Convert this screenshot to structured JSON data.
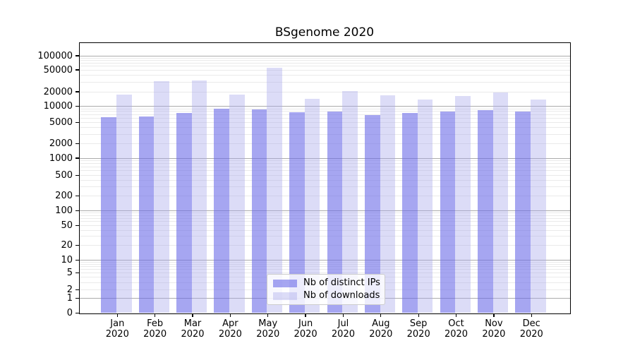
{
  "chart_data": {
    "type": "bar",
    "title": "BSgenome 2020",
    "categories": [
      "Jan 2020",
      "Feb 2020",
      "Mar 2020",
      "Apr 2020",
      "May 2020",
      "Jun 2020",
      "Jul 2020",
      "Aug 2020",
      "Sep 2020",
      "Oct 2020",
      "Nov 2020",
      "Dec 2020"
    ],
    "series": [
      {
        "name": "Nb of distinct IPs",
        "values": [
          6200,
          6500,
          7600,
          9000,
          8800,
          7800,
          8100,
          6900,
          7600,
          8100,
          8500,
          7900
        ]
      },
      {
        "name": "Nb of downloads",
        "values": [
          17500,
          31000,
          32000,
          17400,
          55000,
          14500,
          20800,
          16800,
          13700,
          16200,
          19300,
          14000
        ]
      }
    ],
    "xlabel": "",
    "ylabel": "",
    "yscale": "symlog",
    "ylim": [
      0,
      190000
    ],
    "yticks": [
      0,
      1,
      2,
      5,
      10,
      20,
      50,
      100,
      200,
      500,
      1000,
      2000,
      5000,
      10000,
      20000,
      50000,
      100000
    ],
    "grid": true,
    "legend_position": "lower center"
  },
  "colors": {
    "bar_ips": "rgba(107,107,232,0.6)",
    "bar_downloads": "rgba(168,168,235,0.4)",
    "major_grid": "#ababab",
    "minor_grid": "#eaeaea",
    "spine": "#000000",
    "text": "#000000",
    "legend_bg": "rgba(255,255,255,0.8)",
    "legend_border": "#cccccc"
  }
}
